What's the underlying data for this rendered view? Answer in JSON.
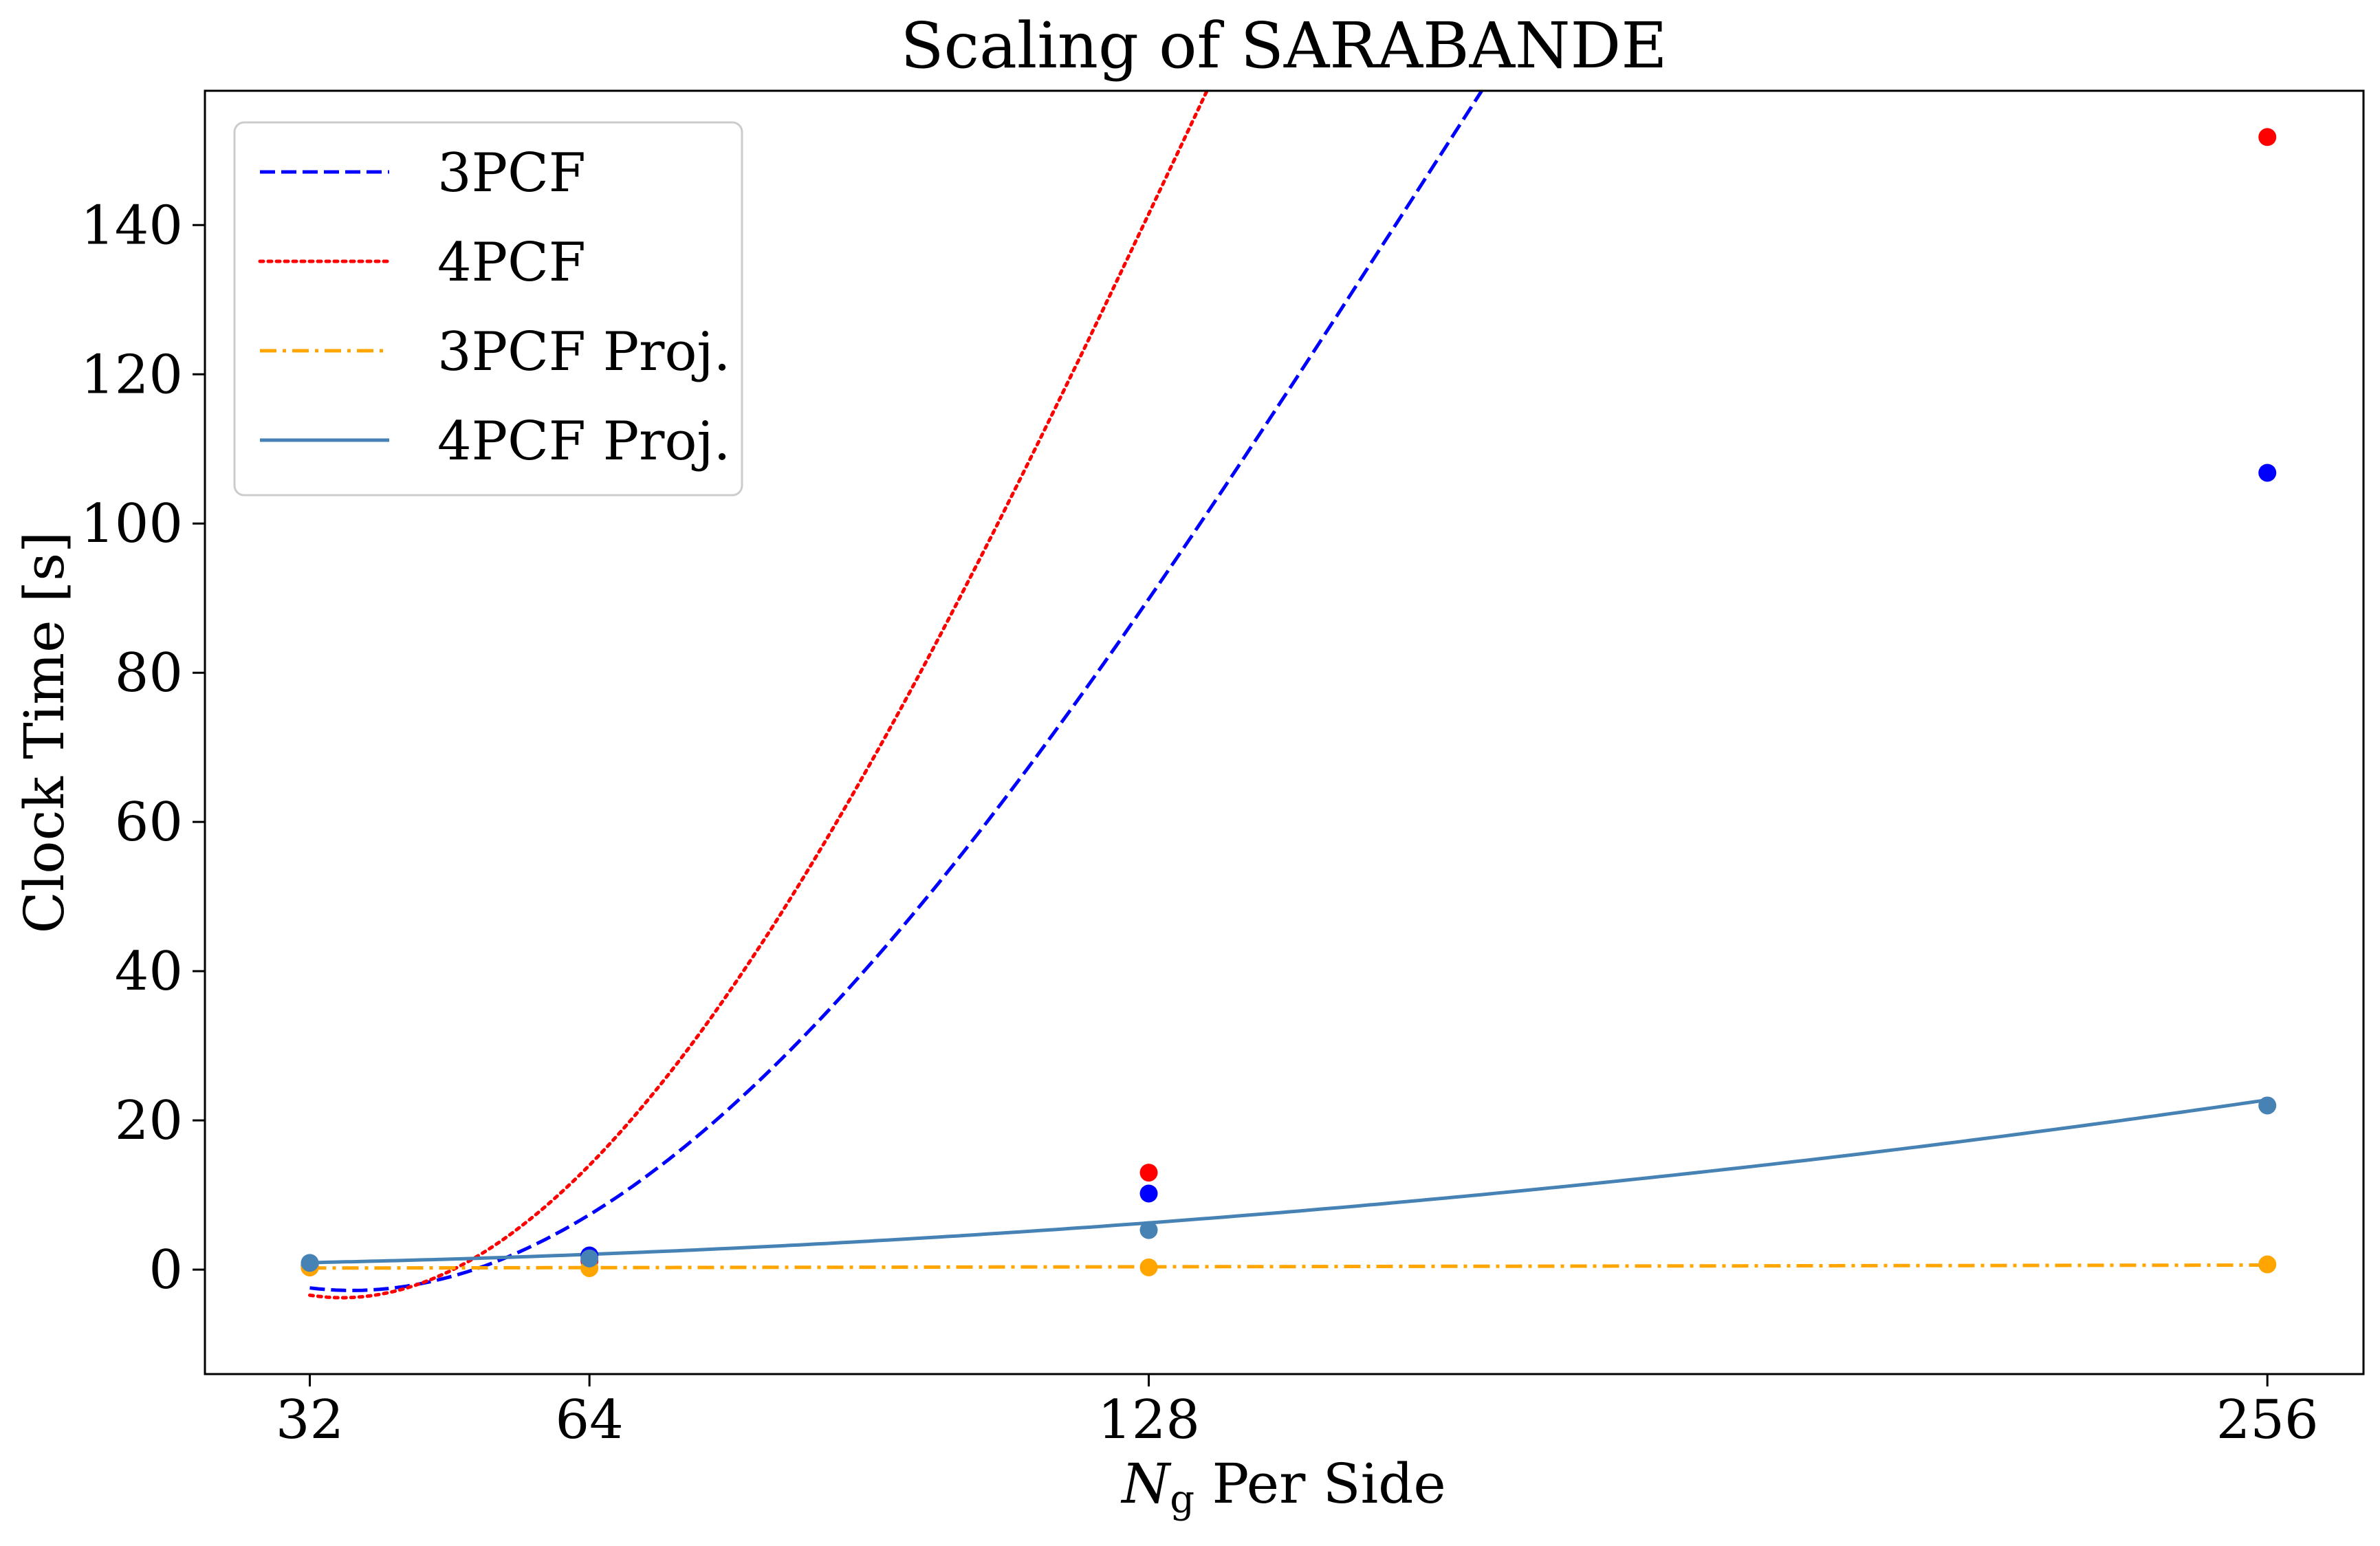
{
  "chart_data": {
    "type": "line",
    "title": "Scaling of SARABANDE",
    "xlabel_main": "N",
    "xlabel_sub": "g",
    "xlabel_rest": " Per Side",
    "ylabel": "Clock Time [s]",
    "x_ticks": [
      32,
      64,
      128,
      256
    ],
    "x_tick_labels": [
      "32",
      "64",
      "128",
      "256"
    ],
    "y_ticks": [
      0,
      20,
      40,
      60,
      80,
      100,
      120,
      140
    ],
    "y_tick_labels": [
      "0",
      "20",
      "40",
      "60",
      "80",
      "100",
      "120",
      "140"
    ],
    "xlim": [
      20,
      267
    ],
    "ylim": [
      -14,
      158
    ],
    "grid": false,
    "legend_position": "upper-left",
    "series": [
      {
        "name": "3PCF",
        "color": "#0000ff",
        "line_style": "dashed",
        "points": [
          [
            32,
            0.5
          ],
          [
            64,
            1.9
          ],
          [
            128,
            10.2
          ],
          [
            256,
            106.8
          ]
        ],
        "fit_coefficients": [
          -4e-05,
          0.0192,
          -1.25,
          19.2
        ]
      },
      {
        "name": "4PCF",
        "color": "#ff0000",
        "line_style": "dotted",
        "points": [
          [
            32,
            0.3
          ],
          [
            64,
            1.2
          ],
          [
            128,
            13.0
          ],
          [
            256,
            151.8
          ]
        ],
        "fit_coefficients": [
          -8e-05,
          0.033,
          -2.05,
          31.0
        ]
      },
      {
        "name": "3PCF Proj.",
        "color": "#ffa500",
        "line_style": "dashdot",
        "points": [
          [
            32,
            0.3
          ],
          [
            64,
            0.2
          ],
          [
            128,
            0.3
          ],
          [
            256,
            0.7
          ]
        ],
        "fit_coefficients": [
          0,
          0,
          0.0018,
          0.15
        ]
      },
      {
        "name": "4PCF Proj.",
        "color": "#4682b4",
        "line_style": "solid",
        "points": [
          [
            32,
            0.9
          ],
          [
            64,
            1.5
          ],
          [
            128,
            5.3
          ],
          [
            256,
            22.0
          ]
        ],
        "fit_coefficients": [
          0,
          0.000327,
          0.0032,
          0.5
        ]
      }
    ]
  }
}
